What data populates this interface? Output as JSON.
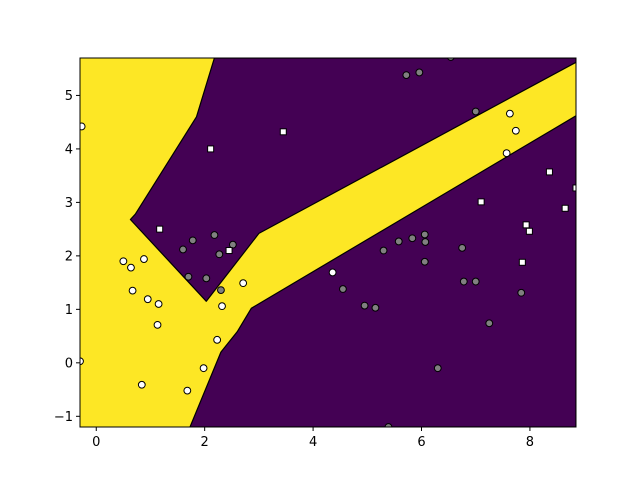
{
  "chart_data": {
    "type": "scatter",
    "title": "",
    "xlabel": "",
    "ylabel": "",
    "xlim": [
      -0.3,
      8.85
    ],
    "ylim": [
      -1.2,
      5.7
    ],
    "xticks": [
      0,
      2,
      4,
      6,
      8
    ],
    "yticks": [
      -1,
      0,
      1,
      2,
      3,
      4,
      5
    ],
    "grid": false,
    "legend": "none",
    "colors": {
      "region_a": "#fde725",
      "region_b": "#440154",
      "point_white": "#ffffff",
      "point_gray": "#808080",
      "edge": "#000000"
    },
    "decision_regions": {
      "class_b_upper": [
        [
          2.18,
          5.7
        ],
        [
          8.85,
          5.7
        ],
        [
          8.85,
          5.62
        ],
        [
          3.0,
          2.42
        ],
        [
          2.03,
          1.15
        ],
        [
          0.63,
          2.68
        ],
        [
          0.72,
          2.78
        ],
        [
          1.85,
          4.6
        ]
      ],
      "class_b_lower": [
        [
          1.73,
          -1.2
        ],
        [
          8.85,
          -1.2
        ],
        [
          8.85,
          4.62
        ],
        [
          2.86,
          1.02
        ],
        [
          2.6,
          0.58
        ],
        [
          2.3,
          0.2
        ]
      ]
    },
    "series": [
      {
        "marker": "circle",
        "fill": "#ffffff",
        "points": [
          [
            -0.27,
            4.42
          ],
          [
            -0.3,
            0.03
          ],
          [
            0.5,
            1.9
          ],
          [
            0.64,
            1.78
          ],
          [
            0.67,
            1.35
          ],
          [
            0.88,
            1.94
          ],
          [
            0.95,
            1.19
          ],
          [
            1.15,
            1.1
          ],
          [
            1.13,
            0.71
          ],
          [
            0.84,
            -0.41
          ],
          [
            1.68,
            -0.52
          ],
          [
            1.98,
            -0.1
          ],
          [
            2.23,
            0.43
          ],
          [
            2.32,
            1.06
          ],
          [
            2.71,
            1.49
          ],
          [
            4.36,
            1.69
          ],
          [
            7.63,
            4.66
          ],
          [
            7.74,
            4.34
          ],
          [
            7.57,
            3.92
          ]
        ]
      },
      {
        "marker": "circle",
        "fill": "#808080",
        "points": [
          [
            1.6,
            2.12
          ],
          [
            1.78,
            2.29
          ],
          [
            1.7,
            1.61
          ],
          [
            2.03,
            1.58
          ],
          [
            2.18,
            2.39
          ],
          [
            2.27,
            2.03
          ],
          [
            2.3,
            1.36
          ],
          [
            2.52,
            2.21
          ],
          [
            4.55,
            1.38
          ],
          [
            4.95,
            1.07
          ],
          [
            5.15,
            1.03
          ],
          [
            5.3,
            2.1
          ],
          [
            5.58,
            2.27
          ],
          [
            5.72,
            5.38
          ],
          [
            5.83,
            2.33
          ],
          [
            5.96,
            5.43
          ],
          [
            6.06,
            2.4
          ],
          [
            6.07,
            2.26
          ],
          [
            6.06,
            1.89
          ],
          [
            6.3,
            -0.1
          ],
          [
            6.54,
            5.72
          ],
          [
            6.75,
            2.15
          ],
          [
            6.78,
            1.52
          ],
          [
            7.0,
            1.52
          ],
          [
            7.0,
            4.7
          ],
          [
            7.25,
            0.74
          ],
          [
            7.84,
            1.31
          ],
          [
            5.39,
            -1.2
          ]
        ]
      },
      {
        "marker": "square",
        "fill": "#ffffff",
        "points": [
          [
            3.45,
            4.32
          ],
          [
            2.11,
            4.0
          ],
          [
            1.17,
            2.5
          ],
          [
            2.45,
            2.1
          ],
          [
            7.1,
            3.01
          ],
          [
            7.86,
            1.88
          ],
          [
            7.93,
            2.58
          ],
          [
            7.99,
            2.46
          ],
          [
            8.36,
            3.57
          ],
          [
            8.65,
            2.89
          ],
          [
            8.85,
            3.27
          ]
        ]
      }
    ]
  }
}
